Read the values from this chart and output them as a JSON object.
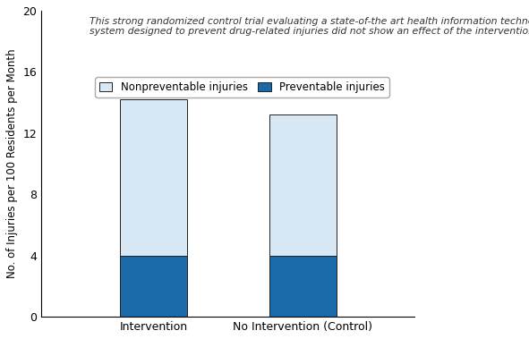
{
  "categories": [
    "Intervention",
    "No Intervention (Control)"
  ],
  "preventable": [
    4.0,
    4.0
  ],
  "nonpreventable": [
    10.2,
    9.2
  ],
  "bar_width": 0.18,
  "bar_positions": [
    0.3,
    0.7
  ],
  "preventable_color": "#1a6aaa",
  "nonpreventable_color": "#d8e8f5",
  "bar_edge_color": "#222222",
  "bar_linewidth": 0.7,
  "ylim": [
    0,
    20
  ],
  "xlim": [
    0.0,
    1.0
  ],
  "yticks": [
    0,
    4,
    8,
    12,
    16,
    20
  ],
  "ylabel": "No. of Injuries per 100 Residents per Month",
  "legend_labels": [
    "Nonpreventable injuries",
    "Preventable injuries"
  ],
  "annotation_line1": "This strong randomized control trial evaluating a state-of-the art health information technology",
  "annotation_line2": "system designed to prevent drug-related injuries did not show an effect of the intervention.",
  "annotation_fontsize": 7.8,
  "bg_color": "#ffffff"
}
